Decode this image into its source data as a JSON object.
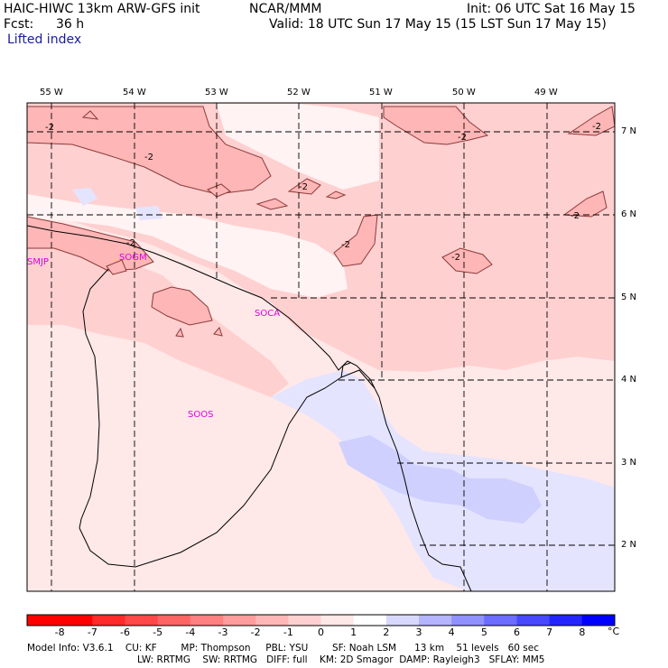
{
  "header": {
    "model": "HAIC-HIWC 13km ARW-GFS init",
    "institution": "NCAR/MMM",
    "init": "Init: 06 UTC Sat 16 May 15",
    "fcst_label": "Fcst:",
    "fcst_value": "36 h",
    "valid": "Valid: 18 UTC Sun 17 May 15 (15 LST Sun 17 May 15)",
    "field": "Lifted index"
  },
  "map": {
    "lon_labels": [
      "55 W",
      "54 W",
      "53 W",
      "52 W",
      "51 W",
      "50 W",
      "49 W"
    ],
    "lat_labels": [
      "7 N",
      "6 N",
      "5 N",
      "4 N",
      "3 N",
      "2 N"
    ],
    "stations": [
      "SMJP",
      "SOGM",
      "SOCA",
      "SOOS"
    ],
    "contour_label": "-2",
    "station_color": "#e000e0"
  },
  "colorbar": {
    "ticks": [
      "-8",
      "-7",
      "-6",
      "-5",
      "-4",
      "-3",
      "-2",
      "-1",
      "0",
      "1",
      "2",
      "3",
      "4",
      "5",
      "6",
      "7",
      "8"
    ],
    "unit": "°C",
    "colors": [
      "#ff0000",
      "#ff2a2a",
      "#ff4848",
      "#ff6464",
      "#ff8080",
      "#ff9c9c",
      "#ffb6b6",
      "#ffd0d0",
      "#ffe8e8",
      "#ffffff",
      "#d8d8ff",
      "#b4b4ff",
      "#9090ff",
      "#6c6cff",
      "#4848ff",
      "#2424ff",
      "#0000ff"
    ]
  },
  "footer": {
    "line1": "Model Info: V3.6.1    CU: KF        MP: Thompson     PBL: YSU        SF: Noah LSM      13 km    51 levels   60 sec",
    "line2": "LW: RRTMG    SW: RRTMG   DIFF: full    KM: 2D Smagor  DAMP: Rayleigh3   SFLAY: MM5"
  }
}
